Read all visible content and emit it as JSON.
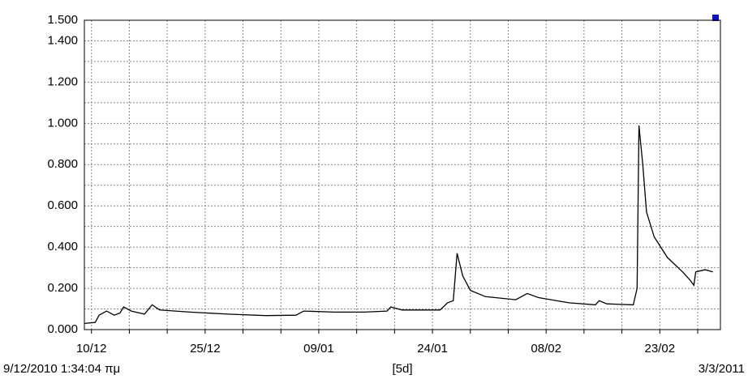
{
  "chart_data": {
    "type": "line",
    "xlim": [
      "2010-12-09T01:34",
      "2011-03-03T00:00"
    ],
    "ylim": [
      0,
      1.5
    ],
    "xticks": [
      {
        "value": "2010-12-10T00:00",
        "label": "10/12"
      },
      {
        "value": "2010-12-15T00:00",
        "label": null
      },
      {
        "value": "2010-12-20T00:00",
        "label": null
      },
      {
        "value": "2010-12-25T00:00",
        "label": "25/12"
      },
      {
        "value": "2010-12-30T00:00",
        "label": null
      },
      {
        "value": "2011-01-04T00:00",
        "label": null
      },
      {
        "value": "2011-01-09T00:00",
        "label": "09/01"
      },
      {
        "value": "2011-01-14T00:00",
        "label": null
      },
      {
        "value": "2011-01-19T00:00",
        "label": null
      },
      {
        "value": "2011-01-24T00:00",
        "label": "24/01"
      },
      {
        "value": "2011-01-29T00:00",
        "label": null
      },
      {
        "value": "2011-02-03T00:00",
        "label": null
      },
      {
        "value": "2011-02-08T00:00",
        "label": "08/02"
      },
      {
        "value": "2011-02-13T00:00",
        "label": null
      },
      {
        "value": "2011-02-18T00:00",
        "label": null
      },
      {
        "value": "2011-02-23T00:00",
        "label": "23/02"
      },
      {
        "value": "2011-02-28T00:00",
        "label": null
      }
    ],
    "yticks": [
      {
        "value": 0,
        "label": "0.000"
      },
      {
        "value": 0.1,
        "label": null
      },
      {
        "value": 0.2,
        "label": "0.200"
      },
      {
        "value": 0.3,
        "label": null
      },
      {
        "value": 0.4,
        "label": "0.400"
      },
      {
        "value": 0.5,
        "label": null
      },
      {
        "value": 0.6,
        "label": "0.600"
      },
      {
        "value": 0.7,
        "label": null
      },
      {
        "value": 0.8,
        "label": "0.800"
      },
      {
        "value": 0.9,
        "label": null
      },
      {
        "value": 1.0,
        "label": "1.000"
      },
      {
        "value": 1.1,
        "label": null
      },
      {
        "value": 1.2,
        "label": "1.200"
      },
      {
        "value": 1.3,
        "label": null
      },
      {
        "value": 1.4,
        "label": "1.400"
      },
      {
        "value": 1.5,
        "label": "1.500"
      }
    ],
    "grid": true,
    "start_label": "9/12/2010 1:34:04 πμ",
    "interval_label": "[5d]",
    "end_label": "3/3/2011",
    "series": [
      {
        "color": "#000000",
        "x": [
          "2010-12-09T02:00",
          "2010-12-10T12:00",
          "2010-12-11T00:00",
          "2010-12-12T00:00",
          "2010-12-13T00:00",
          "2010-12-13T18:00",
          "2010-12-14T06:00",
          "2010-12-15T06:00",
          "2010-12-17T00:00",
          "2010-12-18T00:00",
          "2010-12-19T00:00",
          "2010-12-23T00:00",
          "2010-12-28T00:00",
          "2011-01-02T00:00",
          "2011-01-06T00:00",
          "2011-01-07T00:00",
          "2011-01-11T00:00",
          "2011-01-15T00:00",
          "2011-01-18T00:00",
          "2011-01-18T12:00",
          "2011-01-20T00:00",
          "2011-01-25T00:00",
          "2011-01-26T00:00",
          "2011-01-26T18:00",
          "2011-01-27T06:00",
          "2011-01-28T00:00",
          "2011-01-29T00:00",
          "2011-01-31T00:00",
          "2011-02-04T00:00",
          "2011-02-05T12:00",
          "2011-02-07T00:00",
          "2011-02-11T00:00",
          "2011-02-14T12:00",
          "2011-02-15T00:00",
          "2011-02-16T00:00",
          "2011-02-19T12:00",
          "2011-02-20T00:00",
          "2011-02-20T06:00",
          "2011-02-20T18:00",
          "2011-02-21T06:00",
          "2011-02-22T06:00",
          "2011-02-24T00:00",
          "2011-02-26T00:00",
          "2011-02-27T00:00",
          "2011-02-27T12:00",
          "2011-02-27T18:00",
          "2011-03-01T00:00",
          "2011-03-02T00:00"
        ],
        "values": [
          0.03,
          0.035,
          0.07,
          0.09,
          0.07,
          0.08,
          0.11,
          0.09,
          0.075,
          0.12,
          0.095,
          0.085,
          0.075,
          0.068,
          0.07,
          0.09,
          0.085,
          0.085,
          0.09,
          0.11,
          0.095,
          0.095,
          0.13,
          0.14,
          0.37,
          0.26,
          0.19,
          0.16,
          0.145,
          0.175,
          0.155,
          0.13,
          0.12,
          0.14,
          0.125,
          0.12,
          0.2,
          0.99,
          0.8,
          0.57,
          0.45,
          0.35,
          0.28,
          0.24,
          0.215,
          0.28,
          0.29,
          0.28
        ]
      }
    ]
  }
}
